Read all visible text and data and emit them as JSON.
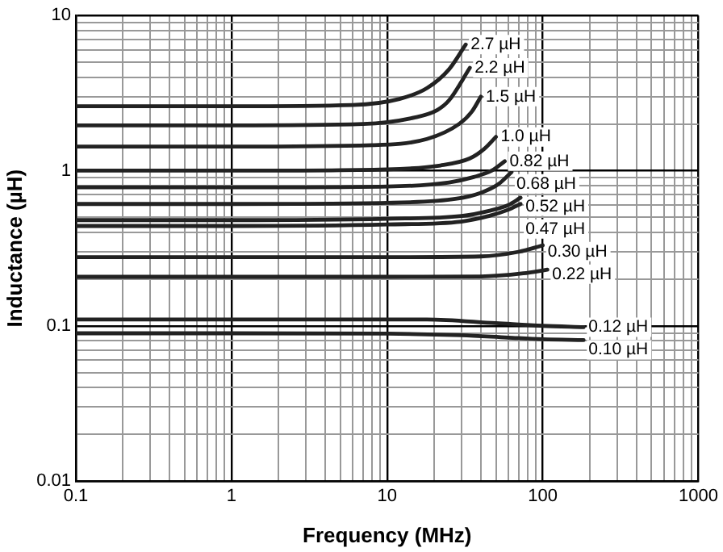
{
  "chart_data": {
    "type": "line",
    "xlabel": "Frequency (MHz)",
    "ylabel": "Inductance (µH)",
    "log": "xy",
    "grid": true,
    "legend": false,
    "marker": "none",
    "line_style": "solid",
    "xlim": [
      0.1,
      1000
    ],
    "ylim": [
      0.01,
      10
    ],
    "xticks": [
      0.1,
      {
        "value": 0.2,
        "label": null
      },
      {
        "value": 0.3,
        "label": null
      },
      {
        "value": 0.4,
        "label": null
      },
      {
        "value": 0.5,
        "label": null
      },
      {
        "value": 0.6,
        "label": null
      },
      {
        "value": 0.7,
        "label": null
      },
      {
        "value": 0.8,
        "label": null
      },
      {
        "value": 0.9,
        "label": null
      },
      1,
      {
        "value": 2,
        "label": null
      },
      {
        "value": 3,
        "label": null
      },
      {
        "value": 4,
        "label": null
      },
      {
        "value": 5,
        "label": null
      },
      {
        "value": 6,
        "label": null
      },
      {
        "value": 7,
        "label": null
      },
      {
        "value": 8,
        "label": null
      },
      {
        "value": 9,
        "label": null
      },
      10,
      {
        "value": 20,
        "label": null
      },
      {
        "value": 30,
        "label": null
      },
      {
        "value": 40,
        "label": null
      },
      {
        "value": 50,
        "label": null
      },
      {
        "value": 60,
        "label": null
      },
      {
        "value": 70,
        "label": null
      },
      {
        "value": 80,
        "label": null
      },
      {
        "value": 90,
        "label": null
      },
      100,
      {
        "value": 200,
        "label": null
      },
      {
        "value": 300,
        "label": null
      },
      {
        "value": 400,
        "label": null
      },
      {
        "value": 500,
        "label": null
      },
      {
        "value": 600,
        "label": null
      },
      {
        "value": 700,
        "label": null
      },
      {
        "value": 800,
        "label": null
      },
      {
        "value": 900,
        "label": null
      },
      1000
    ],
    "yticks": [
      0.01,
      {
        "value": 0.02,
        "label": null
      },
      {
        "value": 0.03,
        "label": null
      },
      {
        "value": 0.04,
        "label": null
      },
      {
        "value": 0.05,
        "label": null
      },
      {
        "value": 0.06,
        "label": null
      },
      {
        "value": 0.07,
        "label": null
      },
      {
        "value": 0.08,
        "label": null
      },
      {
        "value": 0.09,
        "label": null
      },
      0.1,
      {
        "value": 0.2,
        "label": null
      },
      {
        "value": 0.3,
        "label": null
      },
      {
        "value": 0.4,
        "label": null
      },
      {
        "value": 0.5,
        "label": null
      },
      {
        "value": 0.6,
        "label": null
      },
      {
        "value": 0.7,
        "label": null
      },
      {
        "value": 0.8,
        "label": null
      },
      {
        "value": 0.9,
        "label": null
      },
      1,
      {
        "value": 2,
        "label": null
      },
      {
        "value": 3,
        "label": null
      },
      {
        "value": 4,
        "label": null
      },
      {
        "value": 5,
        "label": null
      },
      {
        "value": 6,
        "label": null
      },
      {
        "value": 7,
        "label": null
      },
      {
        "value": 8,
        "label": null
      },
      {
        "value": 9,
        "label": null
      },
      10
    ],
    "series": [
      {
        "name": "2.7 µH",
        "color": "#222222",
        "x": [
          0.1,
          1,
          6,
          12,
          18,
          25,
          32
        ],
        "values": [
          2.6,
          2.6,
          2.65,
          2.9,
          3.4,
          4.5,
          6.5
        ]
      },
      {
        "name": "2.2 µH",
        "color": "#222222",
        "x": [
          0.1,
          1,
          7,
          15,
          21,
          25,
          34
        ],
        "values": [
          1.96,
          1.96,
          2.0,
          2.2,
          2.46,
          2.84,
          4.6
        ]
      },
      {
        "name": "1.5 µH",
        "color": "#222222",
        "x": [
          0.1,
          1,
          8,
          18,
          29,
          35,
          40
        ],
        "values": [
          1.43,
          1.43,
          1.46,
          1.6,
          2.0,
          2.4,
          3.0
        ]
      },
      {
        "name": "1.0 µH",
        "color": "#222222",
        "x": [
          0.1,
          1,
          10,
          22,
          34,
          42,
          50
        ],
        "values": [
          1.0,
          1.0,
          1.02,
          1.08,
          1.2,
          1.38,
          1.65
        ]
      },
      {
        "name": "0.82 µH",
        "color": "#222222",
        "x": [
          0.1,
          1,
          10,
          25,
          36,
          47,
          57
        ],
        "values": [
          0.78,
          0.78,
          0.79,
          0.84,
          0.91,
          1.0,
          1.15
        ]
      },
      {
        "name": "0.68 µH",
        "color": "#222222",
        "x": [
          0.1,
          1,
          10,
          28,
          40,
          52,
          63
        ],
        "values": [
          0.61,
          0.61,
          0.62,
          0.66,
          0.72,
          0.82,
          0.98
        ]
      },
      {
        "name": "0.52 µH",
        "color": "#222222",
        "x": [
          0.1,
          1,
          10,
          30,
          45,
          60,
          72
        ],
        "values": [
          0.48,
          0.48,
          0.49,
          0.51,
          0.55,
          0.6,
          0.67
        ]
      },
      {
        "name": "0.47 µH",
        "color": "#222222",
        "x": [
          0.1,
          1,
          10,
          30,
          45,
          60,
          72
        ],
        "values": [
          0.44,
          0.44,
          0.45,
          0.47,
          0.51,
          0.56,
          0.61
        ]
      },
      {
        "name": "0.30 µH",
        "color": "#222222",
        "x": [
          0.1,
          1,
          10,
          40,
          70,
          100
        ],
        "values": [
          0.277,
          0.277,
          0.277,
          0.28,
          0.3,
          0.33
        ]
      },
      {
        "name": "0.22 µH",
        "color": "#222222",
        "x": [
          0.1,
          1,
          10,
          40,
          75,
          107
        ],
        "values": [
          0.207,
          0.207,
          0.207,
          0.208,
          0.218,
          0.23
        ]
      },
      {
        "name": "0.12 µH",
        "color": "#222222",
        "x": [
          0.1,
          1,
          10,
          18,
          50,
          100,
          183
        ],
        "values": [
          0.11,
          0.11,
          0.11,
          0.11,
          0.104,
          0.1,
          0.098
        ]
      },
      {
        "name": "0.10 µH",
        "color": "#222222",
        "x": [
          0.1,
          1,
          10,
          30,
          60,
          100,
          183
        ],
        "values": [
          0.0895,
          0.0895,
          0.089,
          0.087,
          0.084,
          0.082,
          0.081
        ]
      }
    ]
  }
}
